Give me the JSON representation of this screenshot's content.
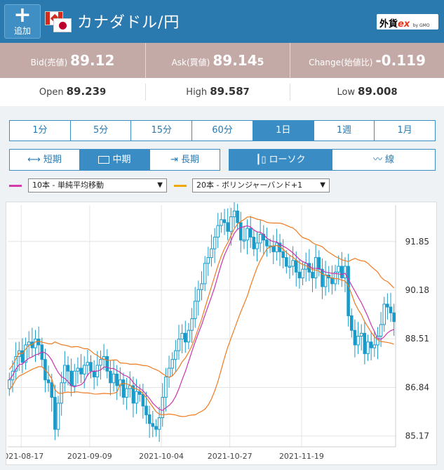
{
  "header": {
    "add_icon": "plus-icon",
    "add_label": "追加",
    "title": "カナダドル/円",
    "logo": {
      "main": "外貨",
      "ex": "ex",
      "sub": "by GMO"
    }
  },
  "quotes": {
    "bid": {
      "label": "Bid(売値)",
      "value": "89.1",
      "big": "2"
    },
    "ask": {
      "label": "Ask(買値)",
      "value": "89.1",
      "big": "4",
      "tail": "5"
    },
    "change": {
      "label": "Change(始値比)",
      "value": "-0.119"
    }
  },
  "ohl": {
    "open": {
      "label": "Open",
      "value": "89.23",
      "tail": "9"
    },
    "high": {
      "label": "High",
      "value": "89.58",
      "tail": "7"
    },
    "low": {
      "label": "Low",
      "value": "89.00",
      "tail": "8"
    }
  },
  "timeframes": [
    "1分",
    "5分",
    "15分",
    "60分",
    "1日",
    "1週",
    "1月"
  ],
  "active_timeframe": "1日",
  "periods": {
    "short": "短期",
    "mid": "中期",
    "long": "長期",
    "active": "中期"
  },
  "chart_types": {
    "candle": "ローソク",
    "line": "線",
    "active": "ローソク"
  },
  "indicators": {
    "ma": {
      "label": "10本 - 単純平均移動",
      "color": "#d63aaa"
    },
    "bb": {
      "label": "20本 - ボリンジャーバンド+1",
      "color": "#f0a800"
    }
  },
  "colors": {
    "accent": "#2a7ab0",
    "candle": "#1a9ac9",
    "band": "#f07a20",
    "ma": "#cc33aa"
  },
  "chart_data": {
    "type": "candlestick",
    "x_ticks": [
      "2021-08-17",
      "2021-09-09",
      "2021-10-04",
      "2021-10-27",
      "2021-11-19"
    ],
    "y_ticks": [
      85.17,
      86.84,
      88.51,
      90.18,
      91.85
    ],
    "ylim": [
      84.8,
      93.1
    ],
    "closes": [
      87.1,
      87.4,
      87.9,
      88.1,
      87.7,
      88.3,
      88.4,
      88.2,
      88.5,
      88.3,
      87.8,
      87.1,
      87.0,
      86.5,
      85.4,
      86.3,
      87.0,
      87.6,
      87.4,
      86.9,
      87.4,
      87.5,
      87.3,
      87.6,
      87.7,
      87.4,
      87.2,
      87.6,
      87.8,
      87.9,
      87.4,
      87.0,
      87.3,
      86.9,
      87.1,
      86.5,
      86.8,
      86.9,
      86.3,
      86.7,
      86.6,
      86.2,
      85.9,
      85.6,
      85.5,
      85.4,
      85.8,
      86.5,
      87.2,
      87.5,
      87.8,
      88.1,
      88.5,
      88.7,
      88.4,
      88.8,
      89.2,
      89.8,
      90.2,
      90.4,
      91.1,
      91.3,
      91.6,
      92.0,
      92.4,
      92.6,
      92.5,
      92.2,
      92.7,
      92.9,
      92.5,
      91.9,
      91.9,
      92.3,
      92.0,
      91.6,
      91.8,
      92.1,
      91.9,
      91.7,
      91.7,
      91.5,
      91.8,
      91.5,
      91.3,
      91.0,
      91.0,
      91.2,
      90.8,
      90.6,
      90.9,
      91.1,
      90.8,
      90.6,
      91.3,
      90.9,
      90.3,
      90.7,
      90.6,
      90.4,
      90.8,
      91.0,
      90.6,
      91.0,
      89.3,
      88.8,
      88.3,
      88.6,
      88.7,
      88.0,
      88.4,
      88.2,
      88.3,
      88.6,
      89.0,
      89.7,
      89.6,
      89.4,
      89.1
    ],
    "series": [
      {
        "name": "10本 - 単純平均移動"
      },
      {
        "name": "20本 - ボリンジャーバンド+1"
      }
    ]
  }
}
